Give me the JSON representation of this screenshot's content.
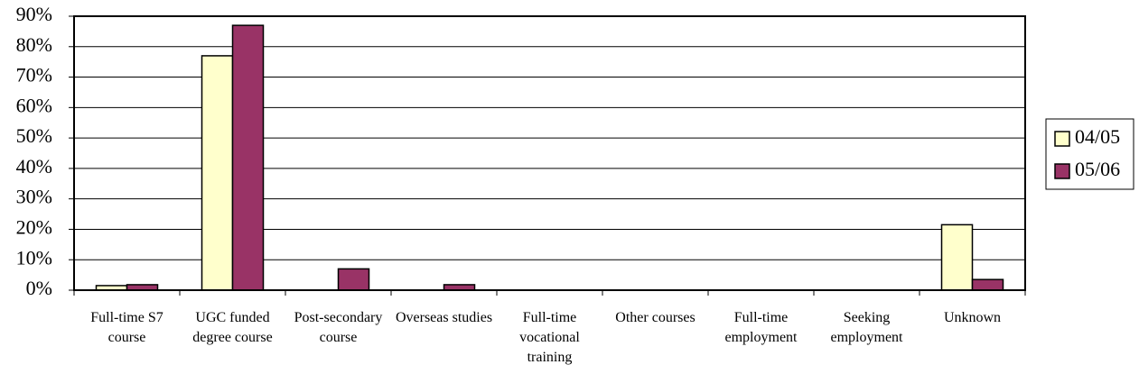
{
  "chart_data": {
    "type": "bar",
    "categories": [
      "Full-time S7 course",
      "UGC funded degree course",
      "Post-secondary course",
      "Overseas studies",
      "Full-time vocational training",
      "Other courses",
      "Full-time employment",
      "Seeking employment",
      "Unknown"
    ],
    "series": [
      {
        "name": "04/05",
        "color": "#ffffcc",
        "values": [
          1.5,
          77,
          0,
          0,
          0,
          0,
          0,
          0,
          21.5
        ]
      },
      {
        "name": "05/06",
        "color": "#993366",
        "values": [
          1.8,
          87,
          7,
          1.8,
          0,
          0,
          0,
          0,
          3.5
        ]
      }
    ],
    "ylim": [
      0,
      90
    ],
    "yticks": [
      {
        "value": 0,
        "label": "0%"
      },
      {
        "value": 10,
        "label": "10%"
      },
      {
        "value": 20,
        "label": "20%"
      },
      {
        "value": 30,
        "label": "30%"
      },
      {
        "value": 40,
        "label": "40%"
      },
      {
        "value": 50,
        "label": "50%"
      },
      {
        "value": 60,
        "label": "60%"
      },
      {
        "value": 70,
        "label": "70%"
      },
      {
        "value": 80,
        "label": "80%"
      },
      {
        "value": 90,
        "label": "90%"
      }
    ],
    "grid": true,
    "legend": "right"
  }
}
